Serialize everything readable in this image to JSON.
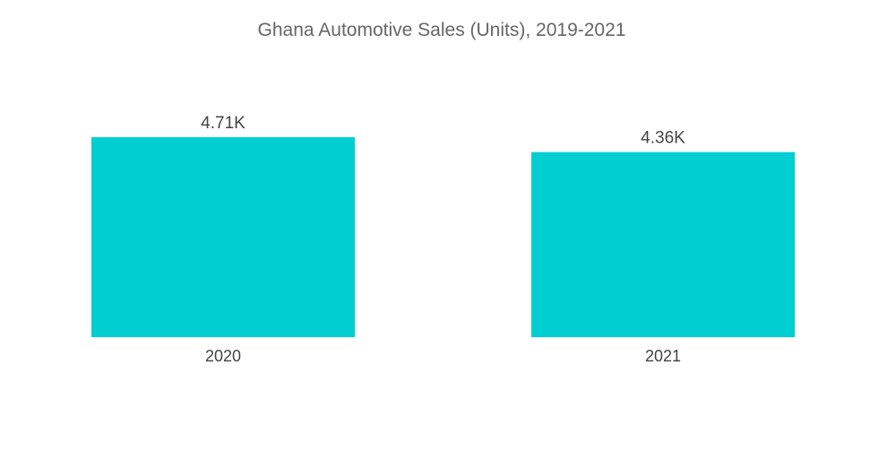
{
  "chart_data": {
    "type": "bar",
    "title": "Ghana Automotive Sales (Units), 2019-2021",
    "xlabel": "",
    "ylabel": "",
    "categories": [
      "2020",
      "2021"
    ],
    "values": [
      4710,
      4360
    ],
    "data_labels": [
      "4.71K",
      "4.36K"
    ],
    "ylim": [
      0,
      4710
    ],
    "grid": false,
    "legend": "none",
    "bar_color": "#00CED1"
  }
}
